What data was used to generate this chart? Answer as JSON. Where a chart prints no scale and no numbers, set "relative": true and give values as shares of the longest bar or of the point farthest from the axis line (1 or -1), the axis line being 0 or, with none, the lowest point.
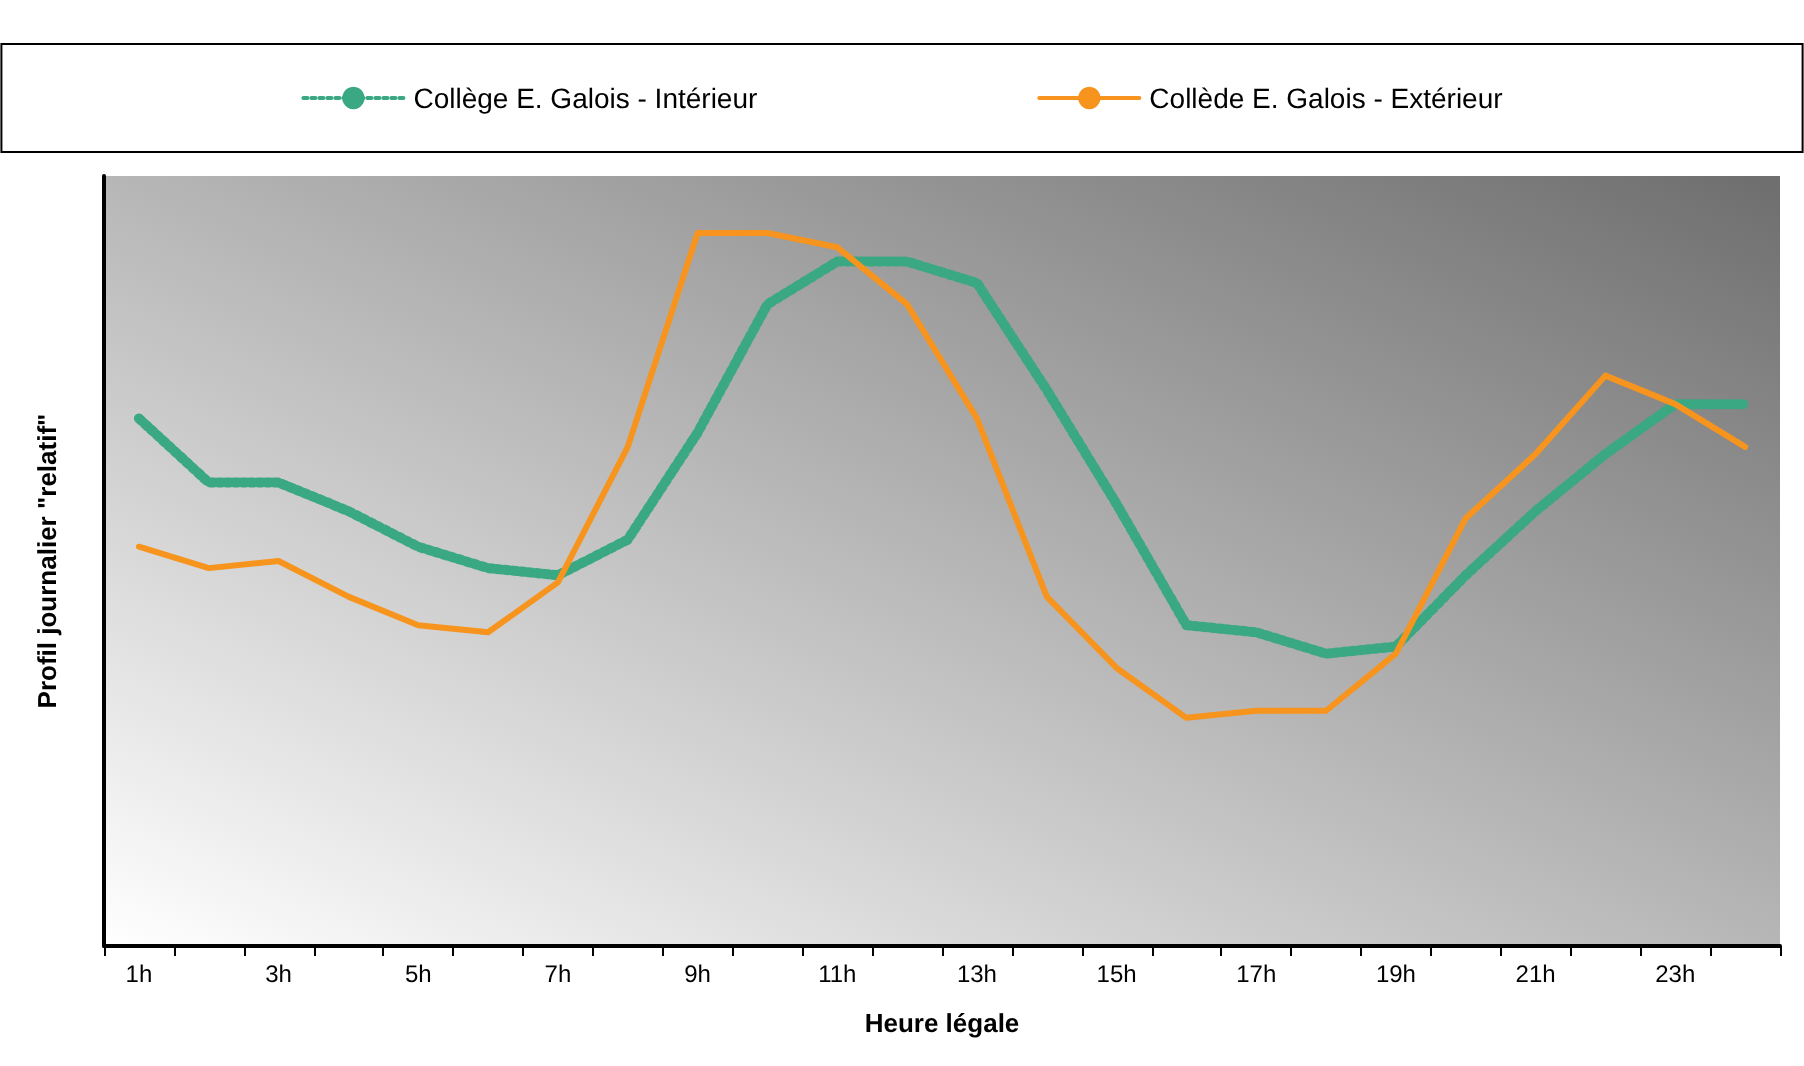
{
  "chart_data": {
    "type": "line",
    "relative": true,
    "xlabel": "Heure légale",
    "ylabel": "Profil journalier \"relatif\"",
    "categories": [
      "1h",
      null,
      "3h",
      null,
      "5h",
      null,
      "7h",
      null,
      "9h",
      null,
      "11h",
      null,
      "13h",
      null,
      "15h",
      null,
      "17h",
      null,
      "19h",
      null,
      "21h",
      null,
      "23h",
      null
    ],
    "series": [
      {
        "name": "Collège E. Galois - Intérieur",
        "color": "#3aa882",
        "line_style": "dotted",
        "values": [
          0.74,
          0.65,
          0.65,
          0.61,
          0.56,
          0.53,
          0.52,
          0.57,
          0.72,
          0.9,
          0.96,
          0.96,
          0.93,
          0.78,
          0.62,
          0.45,
          0.44,
          0.41,
          0.42,
          0.52,
          0.61,
          0.69,
          0.76,
          0.76
        ]
      },
      {
        "name": "Collède E. Galois - Extérieur",
        "color": "#f7941d",
        "line_style": "solid",
        "values": [
          0.56,
          0.53,
          0.54,
          0.49,
          0.45,
          0.44,
          0.51,
          0.7,
          1,
          1,
          0.98,
          0.9,
          0.74,
          0.49,
          0.39,
          0.32,
          0.33,
          0.33,
          0.41,
          0.6,
          0.69,
          0.8,
          0.76,
          0.7
        ]
      }
    ],
    "legend": "top",
    "grid": false,
    "marker": "none"
  }
}
